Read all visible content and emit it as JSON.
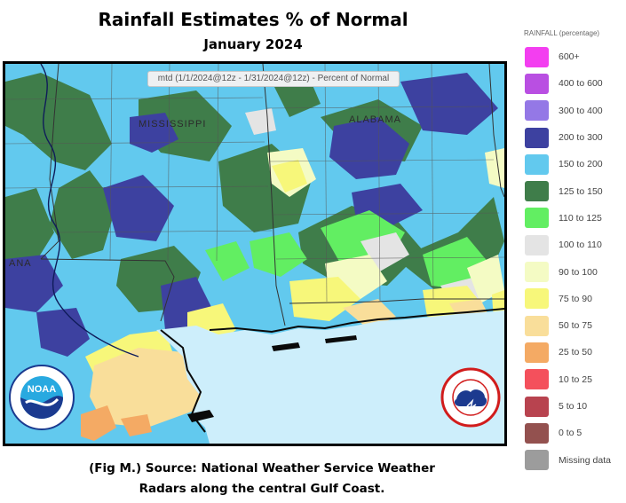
{
  "title": "Rainfall Estimates % of Normal",
  "subtitle": "January 2024",
  "map": {
    "header": "mtd (1/1/2024@12z - 1/31/2024@12z) - Percent of Normal",
    "state_labels": {
      "mississippi": "MISSISSIPPI",
      "alabama": "ALABAMA",
      "louisiana_partial": "ANA"
    }
  },
  "caption": {
    "line1": "(Fig M.) Source: National Weather Service Weather",
    "line2": "Radars along the central Gulf Coast."
  },
  "legend": {
    "title": "RAINFALL (percentage)",
    "items": [
      {
        "label": "600+",
        "color": "#f33ef0"
      },
      {
        "label": "400 to 600",
        "color": "#b94fe2"
      },
      {
        "label": "300 to 400",
        "color": "#9478e6"
      },
      {
        "label": "200 to 300",
        "color": "#3d41a0"
      },
      {
        "label": "150 to 200",
        "color": "#62c9ee"
      },
      {
        "label": "125 to 150",
        "color": "#3f7d4a"
      },
      {
        "label": "110 to 125",
        "color": "#62ee62"
      },
      {
        "label": "100 to 110",
        "color": "#e4e4e4"
      },
      {
        "label": "90 to 100",
        "color": "#f4fbc4"
      },
      {
        "label": "75 to 90",
        "color": "#f7f77a"
      },
      {
        "label": "50 to 75",
        "color": "#f9de9a"
      },
      {
        "label": "25 to 50",
        "color": "#f4aa64"
      },
      {
        "label": "10 to 25",
        "color": "#f4505c"
      },
      {
        "label": "5 to 10",
        "color": "#b8434f"
      },
      {
        "label": "0 to 5",
        "color": "#93514f"
      },
      {
        "label": "Missing data",
        "color": "#9c9c9c"
      }
    ]
  },
  "colors": {
    "gulf": "#cdeefb",
    "nws_blue": "#1c3a8f",
    "nws_red": "#d11c1c",
    "noaa_blue": "#1b3a8f",
    "noaa_cyan": "#28a9e0"
  },
  "logos": {
    "noaa_badge_text": "NOAA",
    "noaa_ring_text": "NATIONAL OCEANIC AND ATMOSPHERIC ADMINISTRATION · U.S. DEPARTMENT OF COMMERCE",
    "nws_ring_text": "NATIONAL WEATHER SERVICE"
  }
}
